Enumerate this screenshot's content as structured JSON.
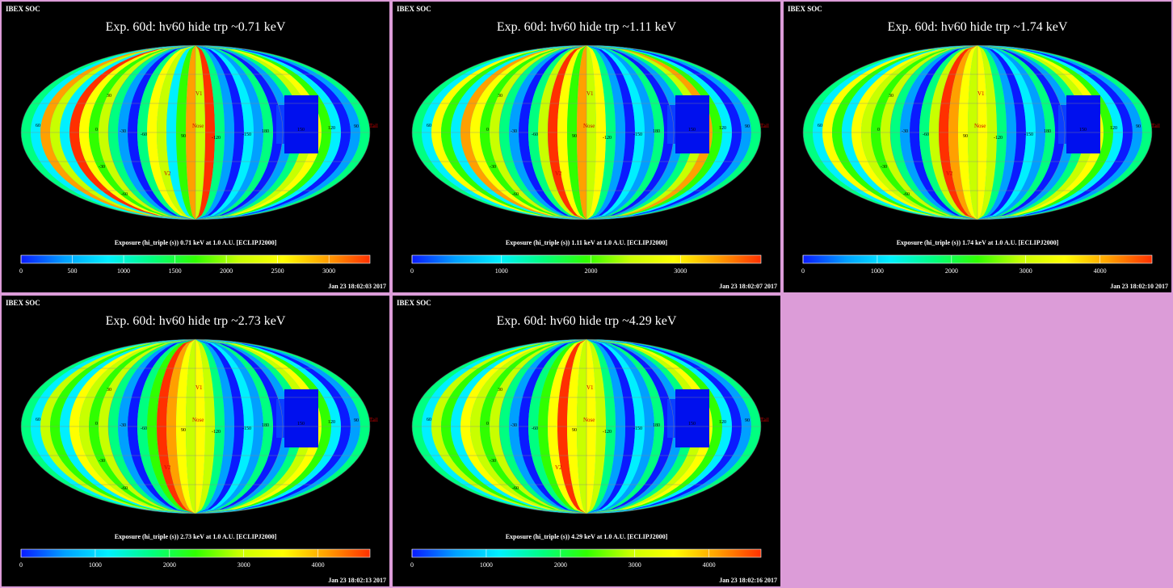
{
  "source_label": "IBEX SOC",
  "colorbar_colors": [
    "#0a1aff",
    "#00a0ff",
    "#00f0ff",
    "#00ff80",
    "#30ff00",
    "#c8ff00",
    "#ffff00",
    "#ffa000",
    "#ff3000"
  ],
  "map_labels": {
    "lat_left": [
      "60",
      "30",
      "0",
      "-30",
      "-60"
    ],
    "lon": [
      "-30",
      "-60",
      "90",
      "-120",
      "-150",
      "180",
      "150",
      "120",
      "90"
    ],
    "markers": [
      "V1",
      "Nose",
      "V2",
      "Tail"
    ]
  },
  "panels": [
    {
      "title": "Exp.   60d: hv60 hide trp ~0.71 keV",
      "caption": "Exposure (hi_triple (s))  0.71 keV at 1.0 A.U. [ECLIPJ2000]",
      "timestamp": "Jan 23 18:02:03 2017",
      "ticks": [
        0,
        500,
        1000,
        1500,
        2000,
        2500,
        3000
      ],
      "scale_max": 3400,
      "stripes": [
        3,
        2,
        7,
        5,
        2,
        8,
        6,
        4,
        5,
        3,
        1,
        0,
        3,
        6,
        5,
        2,
        4,
        7,
        5,
        8,
        3,
        1,
        0,
        2,
        1,
        3,
        0,
        1,
        3,
        5,
        6,
        4,
        2,
        0,
        1,
        3
      ]
    },
    {
      "title": "Exp.   60d: hv60 hide trp ~1.11 keV",
      "caption": "Exposure (hi_triple (s))  1.11 keV at 1.0 A.U. [ECLIPJ2000]",
      "timestamp": "Jan 23 18:02:07 2017",
      "ticks": [
        0,
        1000,
        2000,
        3000
      ],
      "scale_max": 3900,
      "stripes": [
        3,
        2,
        6,
        4,
        2,
        7,
        6,
        4,
        5,
        3,
        1,
        0,
        3,
        5,
        8,
        6,
        4,
        7,
        5,
        6,
        3,
        1,
        0,
        2,
        1,
        3,
        0,
        1,
        3,
        5,
        7,
        4,
        2,
        0,
        1,
        3
      ]
    },
    {
      "title": "Exp.   60d: hv60 hide trp ~1.74 keV",
      "caption": "Exposure (hi_triple (s))  1.74 keV at 1.0 A.U. [ECLIPJ2000]",
      "timestamp": "Jan 23 18:02:10 2017",
      "ticks": [
        0,
        1000,
        2000,
        3000,
        4000
      ],
      "scale_max": 4700,
      "stripes": [
        3,
        2,
        6,
        4,
        2,
        6,
        5,
        4,
        5,
        3,
        1,
        0,
        3,
        5,
        8,
        7,
        6,
        5,
        6,
        5,
        3,
        1,
        0,
        2,
        1,
        3,
        0,
        1,
        3,
        5,
        6,
        4,
        2,
        0,
        1,
        3
      ]
    },
    {
      "title": "Exp.   60d: hv60 hide trp ~2.73 keV",
      "caption": "Exposure (hi_triple (s))  2.73 keV at 1.0 A.U. [ECLIPJ2000]",
      "timestamp": "Jan 23 18:02:13 2017",
      "ticks": [
        0,
        1000,
        2000,
        3000,
        4000
      ],
      "scale_max": 4700,
      "stripes": [
        3,
        2,
        5,
        4,
        2,
        6,
        5,
        4,
        5,
        3,
        1,
        0,
        3,
        4,
        8,
        7,
        6,
        5,
        6,
        5,
        3,
        1,
        0,
        2,
        1,
        3,
        0,
        1,
        3,
        5,
        6,
        4,
        2,
        0,
        1,
        3
      ]
    },
    {
      "title": "Exp.   60d: hv60 hide trp ~4.29 keV",
      "caption": "Exposure (hi_triple (s))  4.29 keV at 1.0 A.U. [ECLIPJ2000]",
      "timestamp": "Jan 23 18:02:16 2017",
      "ticks": [
        0,
        1000,
        2000,
        3000,
        4000
      ],
      "scale_max": 4700,
      "stripes": [
        3,
        2,
        5,
        4,
        2,
        6,
        5,
        4,
        5,
        3,
        1,
        0,
        3,
        4,
        6,
        8,
        6,
        5,
        6,
        5,
        3,
        1,
        0,
        2,
        1,
        3,
        0,
        1,
        3,
        5,
        6,
        4,
        2,
        0,
        1,
        3
      ]
    }
  ]
}
